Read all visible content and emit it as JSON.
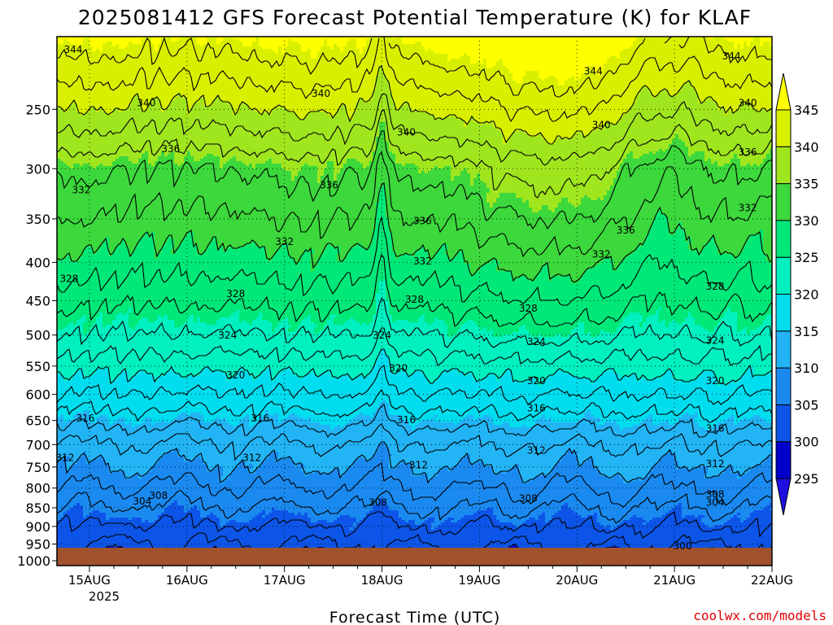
{
  "chart_data": {
    "type": "heatmap",
    "title": "2025081412 GFS Forecast Potential Temperature (K) for KLAF",
    "xlabel": "Forecast Time (UTC)",
    "ylabel": "",
    "credit": "coolwx.com/models",
    "x_ticks": [
      "15AUG",
      "16AUG",
      "17AUG",
      "18AUG",
      "19AUG",
      "20AUG",
      "21AUG",
      "22AUG"
    ],
    "x_year_label": "2025",
    "xlim_hours": [
      -8,
      168
    ],
    "y_ticks": [
      250,
      300,
      350,
      400,
      450,
      500,
      550,
      600,
      650,
      700,
      750,
      800,
      850,
      900,
      950,
      1000
    ],
    "ylim": [
      1015,
      200
    ],
    "ylog": true,
    "colorbar_ticks": [
      295,
      300,
      305,
      310,
      315,
      320,
      325,
      330,
      335,
      340,
      345
    ],
    "colorbar_colors": [
      "#1e0fe0",
      "#0000cc",
      "#0d55e8",
      "#1a8af0",
      "#22b4f5",
      "#00ddee",
      "#00f0c0",
      "#00e878",
      "#3cd83c",
      "#a0e61e",
      "#d8f000",
      "#ffff00"
    ],
    "contour_levels": [
      300,
      302,
      304,
      306,
      308,
      310,
      312,
      314,
      316,
      318,
      320,
      322,
      324,
      326,
      328,
      330,
      332,
      334,
      336,
      338,
      340,
      342,
      344
    ],
    "contour_labels": [
      {
        "text": "344",
        "t": -4,
        "p": 208
      },
      {
        "text": "340",
        "t": 14,
        "p": 245
      },
      {
        "text": "336",
        "t": 20,
        "p": 282
      },
      {
        "text": "332",
        "t": -2,
        "p": 320
      },
      {
        "text": "328",
        "t": -5,
        "p": 420
      },
      {
        "text": "328",
        "t": 36,
        "p": 440
      },
      {
        "text": "324",
        "t": 34,
        "p": 500
      },
      {
        "text": "320",
        "t": 36,
        "p": 565
      },
      {
        "text": "316",
        "t": -1,
        "p": 645
      },
      {
        "text": "316",
        "t": 42,
        "p": 645
      },
      {
        "text": "312",
        "t": -6,
        "p": 728
      },
      {
        "text": "312",
        "t": 40,
        "p": 728
      },
      {
        "text": "308",
        "t": 17,
        "p": 818
      },
      {
        "text": "304",
        "t": 13,
        "p": 832
      },
      {
        "text": "340",
        "t": 57,
        "p": 238
      },
      {
        "text": "336",
        "t": 59,
        "p": 315
      },
      {
        "text": "332",
        "t": 48,
        "p": 375
      },
      {
        "text": "308",
        "t": 71,
        "p": 835
      },
      {
        "text": "328",
        "t": 80,
        "p": 448
      },
      {
        "text": "324",
        "t": 72,
        "p": 500
      },
      {
        "text": "320",
        "t": 76,
        "p": 553
      },
      {
        "text": "316",
        "t": 78,
        "p": 648
      },
      {
        "text": "340",
        "t": 78,
        "p": 268
      },
      {
        "text": "336",
        "t": 82,
        "p": 352
      },
      {
        "text": "332",
        "t": 82,
        "p": 398
      },
      {
        "text": "312",
        "t": 81,
        "p": 745
      },
      {
        "text": "308",
        "t": 108,
        "p": 825
      },
      {
        "text": "340",
        "t": 126,
        "p": 262
      },
      {
        "text": "344",
        "t": 124,
        "p": 222
      },
      {
        "text": "332",
        "t": 126,
        "p": 390
      },
      {
        "text": "328",
        "t": 108,
        "p": 460
      },
      {
        "text": "324",
        "t": 110,
        "p": 510
      },
      {
        "text": "320",
        "t": 110,
        "p": 575
      },
      {
        "text": "316",
        "t": 110,
        "p": 625
      },
      {
        "text": "312",
        "t": 110,
        "p": 712
      },
      {
        "text": "336",
        "t": 132,
        "p": 362
      },
      {
        "text": "344",
        "t": 158,
        "p": 212
      },
      {
        "text": "340",
        "t": 162,
        "p": 245
      },
      {
        "text": "336",
        "t": 162,
        "p": 285
      },
      {
        "text": "332",
        "t": 162,
        "p": 338
      },
      {
        "text": "328",
        "t": 154,
        "p": 430
      },
      {
        "text": "324",
        "t": 154,
        "p": 508
      },
      {
        "text": "320",
        "t": 154,
        "p": 575
      },
      {
        "text": "316",
        "t": 154,
        "p": 665
      },
      {
        "text": "312",
        "t": 154,
        "p": 742
      },
      {
        "text": "308",
        "t": 154,
        "p": 815
      },
      {
        "text": "304",
        "t": 154,
        "p": 835
      },
      {
        "text": "300",
        "t": 146,
        "p": 955
      }
    ]
  }
}
